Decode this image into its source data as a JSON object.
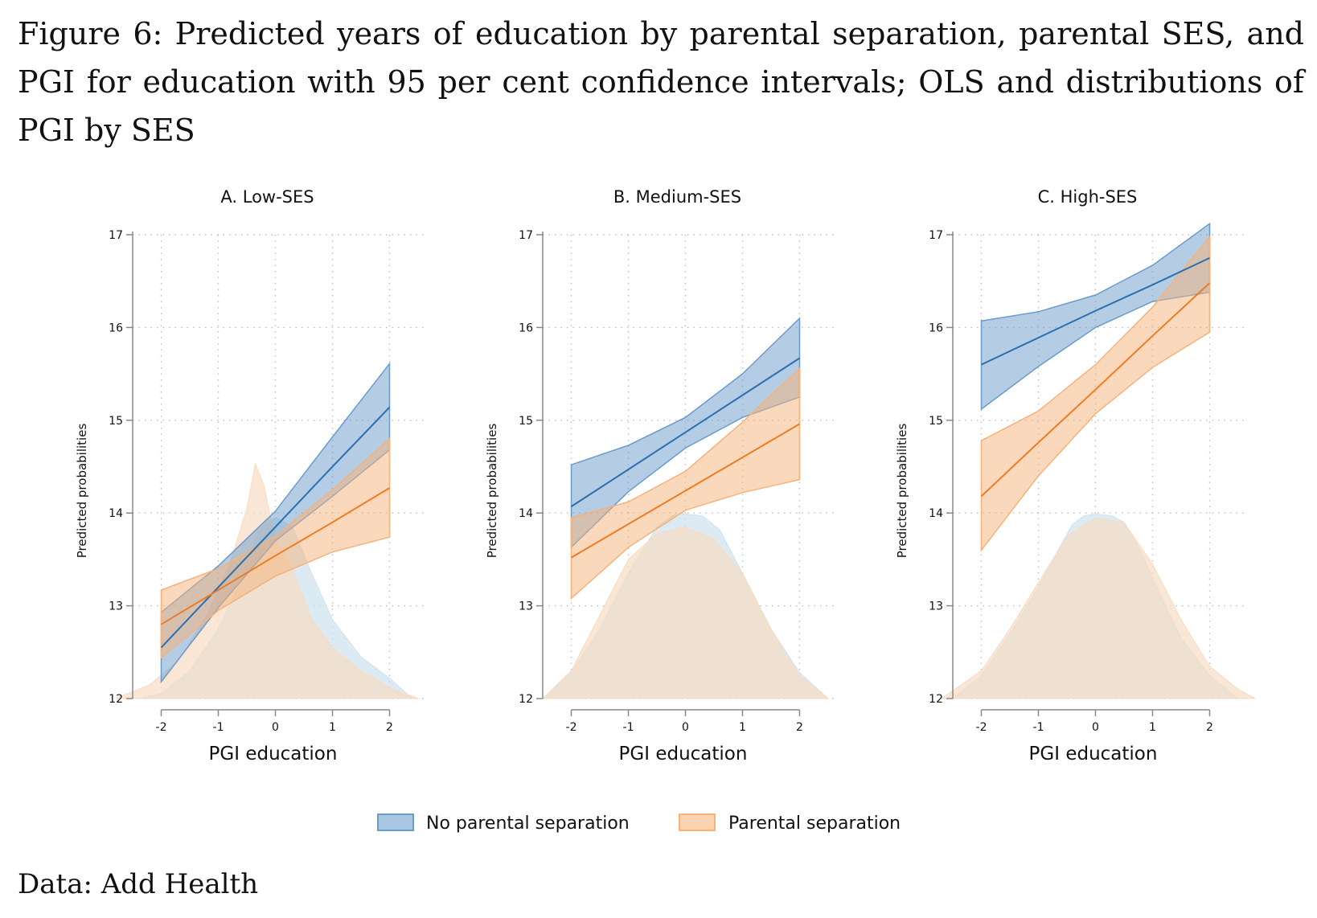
{
  "caption": "Figure 6: Predicted years of education by parental separation, parental SES, and PGI for education with 95 per cent confidence intervals; OLS and distributions of PGI by SES",
  "source": "Data: Add Health",
  "colors": {
    "no_sep_line": "#2a6fb0",
    "no_sep_fill": "#6a9bcb",
    "sep_line": "#ee7d24",
    "sep_fill": "#f6b27a",
    "density_no_sep": "#cfe3ef",
    "density_sep": "#f6dcc4",
    "overlap": "#e4e4dc"
  },
  "chart_data": [
    {
      "type": "line",
      "title": "A. Low-SES",
      "xlabel": "PGI education",
      "ylabel": "Predicted probabilities",
      "xticks": [
        "-2",
        "-1",
        "0",
        "1",
        "2"
      ],
      "yticks": [
        "12",
        "13",
        "14",
        "15",
        "16",
        "17"
      ],
      "xlim": [
        -2.5,
        2.5
      ],
      "ylim": [
        12,
        17
      ],
      "grid": true,
      "x": [
        -2,
        -1,
        0,
        1,
        2
      ],
      "series": [
        {
          "name": "No parental separation",
          "values": [
            12.55,
            13.2,
            13.85,
            14.5,
            15.14
          ],
          "lower": [
            12.18,
            12.98,
            13.7,
            14.18,
            14.68
          ],
          "upper": [
            12.93,
            13.43,
            14.02,
            14.82,
            15.61
          ]
        },
        {
          "name": "Parental separation",
          "values": [
            12.8,
            13.17,
            13.54,
            13.9,
            14.27
          ],
          "lower": [
            12.44,
            12.95,
            13.32,
            13.58,
            13.74
          ],
          "upper": [
            13.17,
            13.4,
            13.75,
            14.25,
            14.8
          ]
        }
      ],
      "density": [
        {
          "name": "No parental separation",
          "x": [
            -2.4,
            -2.0,
            -1.5,
            -1.0,
            -0.5,
            -0.3,
            0.0,
            0.3,
            0.6,
            1.0,
            1.5,
            2.0,
            2.4
          ],
          "y": [
            12.0,
            12.05,
            12.3,
            12.75,
            13.4,
            13.8,
            13.95,
            13.85,
            13.4,
            12.85,
            12.45,
            12.22,
            12.0
          ]
        },
        {
          "name": "Parental separation",
          "x": [
            -2.8,
            -2.2,
            -1.7,
            -1.2,
            -0.8,
            -0.5,
            -0.35,
            -0.2,
            0.0,
            0.3,
            0.6,
            1.0,
            1.5,
            2.0,
            2.5
          ],
          "y": [
            12.0,
            12.15,
            12.4,
            12.9,
            13.45,
            14.05,
            14.53,
            14.3,
            13.7,
            13.4,
            12.9,
            12.55,
            12.3,
            12.12,
            12.0
          ]
        }
      ]
    },
    {
      "type": "line",
      "title": "B. Medium-SES",
      "xlabel": "PGI education",
      "ylabel": "Predicted probabilities",
      "xticks": [
        "-2",
        "-1",
        "0",
        "1",
        "2"
      ],
      "yticks": [
        "12",
        "13",
        "14",
        "15",
        "16",
        "17"
      ],
      "xlim": [
        -2.5,
        2.5
      ],
      "ylim": [
        12,
        17
      ],
      "grid": true,
      "x": [
        -2,
        -1,
        0,
        1,
        2
      ],
      "series": [
        {
          "name": "No parental separation",
          "values": [
            14.07,
            14.47,
            14.87,
            15.27,
            15.67
          ],
          "lower": [
            13.63,
            14.23,
            14.7,
            15.03,
            15.25
          ],
          "upper": [
            14.52,
            14.73,
            15.03,
            15.5,
            16.1
          ]
        },
        {
          "name": "Parental separation",
          "values": [
            13.52,
            13.88,
            14.24,
            14.6,
            14.96
          ],
          "lower": [
            13.08,
            13.63,
            14.03,
            14.22,
            14.36
          ],
          "upper": [
            13.95,
            14.12,
            14.45,
            14.98,
            15.56
          ]
        }
      ],
      "density": [
        {
          "name": "No parental separation",
          "x": [
            -2.5,
            -2.0,
            -1.5,
            -1.0,
            -0.5,
            -0.2,
            0.0,
            0.3,
            0.6,
            1.0,
            1.5,
            2.0,
            2.5
          ],
          "y": [
            12.0,
            12.28,
            12.75,
            13.35,
            13.85,
            13.98,
            13.99,
            13.97,
            13.82,
            13.35,
            12.75,
            12.28,
            12.0
          ]
        },
        {
          "name": "Parental separation",
          "x": [
            -2.5,
            -2.0,
            -1.5,
            -1.0,
            -0.5,
            0.0,
            0.5,
            1.0,
            1.5,
            2.0,
            2.5
          ],
          "y": [
            12.0,
            12.3,
            12.9,
            13.5,
            13.78,
            13.85,
            13.72,
            13.35,
            12.75,
            12.25,
            12.0
          ]
        }
      ]
    },
    {
      "type": "line",
      "title": "C. High-SES",
      "xlabel": "PGI education",
      "ylabel": "Predicted probabilities",
      "xticks": [
        "-2",
        "-1",
        "0",
        "1",
        "2"
      ],
      "yticks": [
        "12",
        "13",
        "14",
        "15",
        "16",
        "17"
      ],
      "xlim": [
        -2.5,
        2.5
      ],
      "ylim": [
        12,
        17
      ],
      "grid": true,
      "x": [
        -2,
        -1,
        0,
        1,
        2
      ],
      "series": [
        {
          "name": "No parental separation",
          "values": [
            15.6,
            15.89,
            16.18,
            16.46,
            16.75
          ],
          "lower": [
            15.12,
            15.58,
            16.0,
            16.28,
            16.38
          ],
          "upper": [
            16.07,
            16.17,
            16.35,
            16.67,
            17.12
          ]
        },
        {
          "name": "Parental separation",
          "values": [
            14.18,
            14.76,
            15.33,
            15.91,
            16.48
          ],
          "lower": [
            13.6,
            14.4,
            15.07,
            15.57,
            15.95
          ],
          "upper": [
            14.78,
            15.1,
            15.6,
            16.22,
            16.98
          ]
        }
      ],
      "density": [
        {
          "name": "No parental separation",
          "x": [
            -2.5,
            -2.0,
            -1.5,
            -1.0,
            -0.7,
            -0.4,
            -0.2,
            0.0,
            0.3,
            0.5,
            0.8,
            1.0,
            1.5,
            2.0,
            2.5
          ],
          "y": [
            12.0,
            12.25,
            12.7,
            13.2,
            13.55,
            13.88,
            13.97,
            13.99,
            13.97,
            13.9,
            13.58,
            13.3,
            12.65,
            12.25,
            12.0
          ]
        },
        {
          "name": "Parental separation",
          "x": [
            -2.7,
            -2.0,
            -1.5,
            -1.0,
            -0.5,
            0.0,
            0.5,
            1.0,
            1.5,
            2.0,
            2.5,
            2.8
          ],
          "y": [
            12.0,
            12.3,
            12.75,
            13.25,
            13.75,
            13.95,
            13.9,
            13.45,
            12.85,
            12.35,
            12.1,
            12.0
          ]
        }
      ]
    }
  ],
  "legend": {
    "position": "bottom",
    "items": [
      {
        "label": "No parental separation"
      },
      {
        "label": "Parental separation"
      }
    ]
  }
}
